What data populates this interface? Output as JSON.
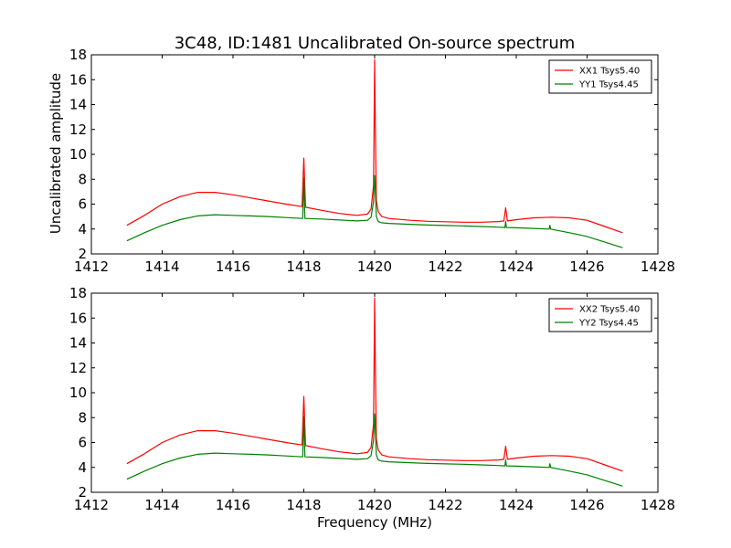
{
  "figure": {
    "title": "3C48, ID:1481 Uncalibrated On-source spectrum",
    "xlabel": "Frequency (MHz)",
    "ylabel": "Uncalibrated amplitude"
  },
  "colors": {
    "xx": "#ff0000",
    "yy": "#008000"
  },
  "chart_data": [
    {
      "type": "line",
      "title": "3C48, ID:1481 Uncalibrated On-source spectrum",
      "xlabel": "",
      "ylabel": "Uncalibrated amplitude",
      "xlim": [
        1412,
        1428
      ],
      "ylim": [
        2,
        18
      ],
      "xticks": [
        "1412",
        "1414",
        "1416",
        "1418",
        "1420",
        "1422",
        "1424",
        "1426",
        "1428"
      ],
      "yticks": [
        "2",
        "4",
        "6",
        "8",
        "10",
        "12",
        "14",
        "16",
        "18"
      ],
      "legend_position": "top-right",
      "series": [
        {
          "name": "XX1 Tsys5.40",
          "color": "#ff0000",
          "x": [
            1413.0,
            1413.5,
            1414.0,
            1414.5,
            1415.0,
            1415.5,
            1416.0,
            1416.5,
            1417.0,
            1417.5,
            1417.95,
            1418.0,
            1418.05,
            1418.5,
            1419.0,
            1419.5,
            1419.8,
            1419.9,
            1419.97,
            1420.0,
            1420.02,
            1420.05,
            1420.1,
            1420.2,
            1420.4,
            1421.0,
            1421.5,
            1422.0,
            1422.5,
            1423.0,
            1423.5,
            1423.65,
            1423.7,
            1423.75,
            1424.0,
            1424.5,
            1425.0,
            1425.5,
            1426.0,
            1426.5,
            1427.0
          ],
          "y": [
            4.3,
            5.1,
            6.0,
            6.6,
            6.95,
            6.95,
            6.75,
            6.5,
            6.25,
            6.0,
            5.8,
            9.7,
            5.75,
            5.5,
            5.25,
            5.1,
            5.2,
            5.6,
            7.5,
            17.6,
            12.0,
            6.3,
            5.4,
            5.0,
            4.85,
            4.7,
            4.62,
            4.58,
            4.55,
            4.55,
            4.6,
            4.65,
            5.7,
            4.65,
            4.75,
            4.9,
            4.95,
            4.9,
            4.7,
            4.2,
            3.7
          ]
        },
        {
          "name": "YY1 Tsys4.45",
          "color": "#008000",
          "x": [
            1413.0,
            1413.5,
            1414.0,
            1414.5,
            1415.0,
            1415.5,
            1416.0,
            1416.5,
            1417.0,
            1417.5,
            1417.97,
            1418.0,
            1418.03,
            1418.5,
            1419.0,
            1419.5,
            1419.8,
            1419.9,
            1419.97,
            1420.0,
            1420.02,
            1420.05,
            1420.1,
            1420.2,
            1420.4,
            1421.0,
            1421.5,
            1422.0,
            1422.5,
            1423.0,
            1423.5,
            1423.68,
            1423.7,
            1423.72,
            1424.0,
            1424.5,
            1424.93,
            1424.95,
            1424.97,
            1425.5,
            1426.0,
            1426.5,
            1427.0
          ],
          "y": [
            3.05,
            3.7,
            4.3,
            4.75,
            5.05,
            5.15,
            5.1,
            5.05,
            5.0,
            4.92,
            4.85,
            8.1,
            4.85,
            4.8,
            4.72,
            4.65,
            4.7,
            4.95,
            6.2,
            8.3,
            7.0,
            5.0,
            4.6,
            4.5,
            4.45,
            4.38,
            4.32,
            4.28,
            4.25,
            4.2,
            4.15,
            4.12,
            4.6,
            4.12,
            4.1,
            4.05,
            4.0,
            4.3,
            4.0,
            3.7,
            3.4,
            2.95,
            2.5
          ]
        }
      ]
    },
    {
      "type": "line",
      "title": "",
      "xlabel": "Frequency (MHz)",
      "ylabel": "",
      "xlim": [
        1412,
        1428
      ],
      "ylim": [
        2,
        18
      ],
      "xticks": [
        "1412",
        "1414",
        "1416",
        "1418",
        "1420",
        "1422",
        "1424",
        "1426",
        "1428"
      ],
      "yticks": [
        "2",
        "4",
        "6",
        "8",
        "10",
        "12",
        "14",
        "16",
        "18"
      ],
      "legend_position": "top-right",
      "series": [
        {
          "name": "XX2 Tsys5.40",
          "color": "#ff0000",
          "x": [
            1413.0,
            1413.5,
            1414.0,
            1414.5,
            1415.0,
            1415.5,
            1416.0,
            1416.5,
            1417.0,
            1417.5,
            1417.95,
            1418.0,
            1418.05,
            1418.5,
            1419.0,
            1419.5,
            1419.8,
            1419.9,
            1419.97,
            1420.0,
            1420.02,
            1420.05,
            1420.1,
            1420.2,
            1420.4,
            1421.0,
            1421.5,
            1422.0,
            1422.5,
            1423.0,
            1423.5,
            1423.65,
            1423.7,
            1423.75,
            1424.0,
            1424.5,
            1425.0,
            1425.5,
            1426.0,
            1426.5,
            1427.0
          ],
          "y": [
            4.3,
            5.1,
            6.0,
            6.6,
            6.95,
            6.95,
            6.75,
            6.5,
            6.25,
            6.0,
            5.8,
            9.7,
            5.75,
            5.5,
            5.25,
            5.1,
            5.2,
            5.6,
            7.5,
            17.6,
            12.0,
            6.3,
            5.4,
            5.0,
            4.85,
            4.7,
            4.62,
            4.58,
            4.55,
            4.55,
            4.6,
            4.65,
            5.7,
            4.65,
            4.75,
            4.9,
            4.95,
            4.9,
            4.7,
            4.2,
            3.7
          ]
        },
        {
          "name": "YY2 Tsys4.45",
          "color": "#008000",
          "x": [
            1413.0,
            1413.5,
            1414.0,
            1414.5,
            1415.0,
            1415.5,
            1416.0,
            1416.5,
            1417.0,
            1417.5,
            1417.97,
            1418.0,
            1418.03,
            1418.5,
            1419.0,
            1419.5,
            1419.8,
            1419.9,
            1419.97,
            1420.0,
            1420.02,
            1420.05,
            1420.1,
            1420.2,
            1420.4,
            1421.0,
            1421.5,
            1422.0,
            1422.5,
            1423.0,
            1423.5,
            1423.68,
            1423.7,
            1423.72,
            1424.0,
            1424.5,
            1424.93,
            1424.95,
            1424.97,
            1425.5,
            1426.0,
            1426.5,
            1427.0
          ],
          "y": [
            3.05,
            3.7,
            4.3,
            4.75,
            5.05,
            5.15,
            5.1,
            5.05,
            5.0,
            4.92,
            4.85,
            8.1,
            4.85,
            4.8,
            4.72,
            4.65,
            4.7,
            4.95,
            6.2,
            8.3,
            7.0,
            5.0,
            4.6,
            4.5,
            4.45,
            4.38,
            4.32,
            4.28,
            4.25,
            4.2,
            4.15,
            4.12,
            4.6,
            4.12,
            4.1,
            4.05,
            4.0,
            4.3,
            4.0,
            3.7,
            3.4,
            2.95,
            2.5
          ]
        }
      ]
    }
  ]
}
